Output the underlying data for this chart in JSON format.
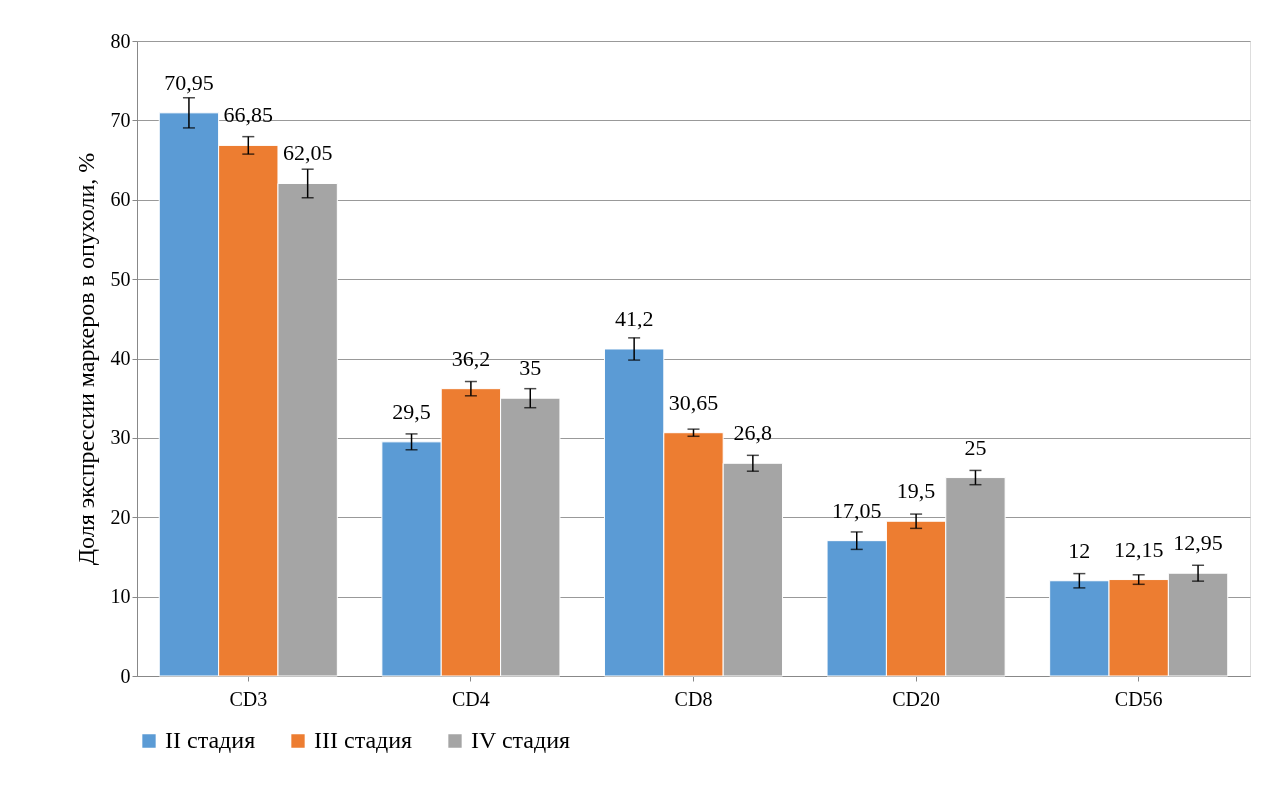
{
  "chart_data": {
    "type": "bar",
    "ylabel": "Доля экспрессии маркеров в опухоли, %",
    "categories": [
      "CD3",
      "CD4",
      "CD8",
      "CD20",
      "CD56"
    ],
    "series": [
      {
        "name": "II стадия",
        "color": "#5b9bd5",
        "values": [
          70.95,
          29.5,
          41.2,
          17.05,
          12
        ],
        "errors": [
          1.9,
          1.0,
          1.4,
          1.1,
          0.9
        ],
        "value_labels": [
          "70,95",
          "29,5",
          "41,2",
          "17,05",
          "12"
        ]
      },
      {
        "name": "III стадия",
        "color": "#ed7d31",
        "values": [
          66.85,
          36.2,
          30.65,
          19.5,
          12.15
        ],
        "errors": [
          1.1,
          0.9,
          0.45,
          0.9,
          0.6
        ],
        "value_labels": [
          "66,85",
          "36,2",
          "30,65",
          "19,5",
          "12,15"
        ]
      },
      {
        "name": "IV стадия",
        "color": "#a5a5a5",
        "values": [
          62.05,
          35,
          26.8,
          25,
          12.95
        ],
        "errors": [
          1.8,
          1.2,
          1.0,
          0.9,
          1.0
        ],
        "value_labels": [
          "62,05",
          "35",
          "26,8",
          "25",
          "12,95"
        ]
      }
    ],
    "ylim": [
      0,
      80
    ],
    "yticks": [
      0,
      10,
      20,
      30,
      40,
      50,
      60,
      70,
      80
    ],
    "grid": "y",
    "legend": "bottom"
  }
}
